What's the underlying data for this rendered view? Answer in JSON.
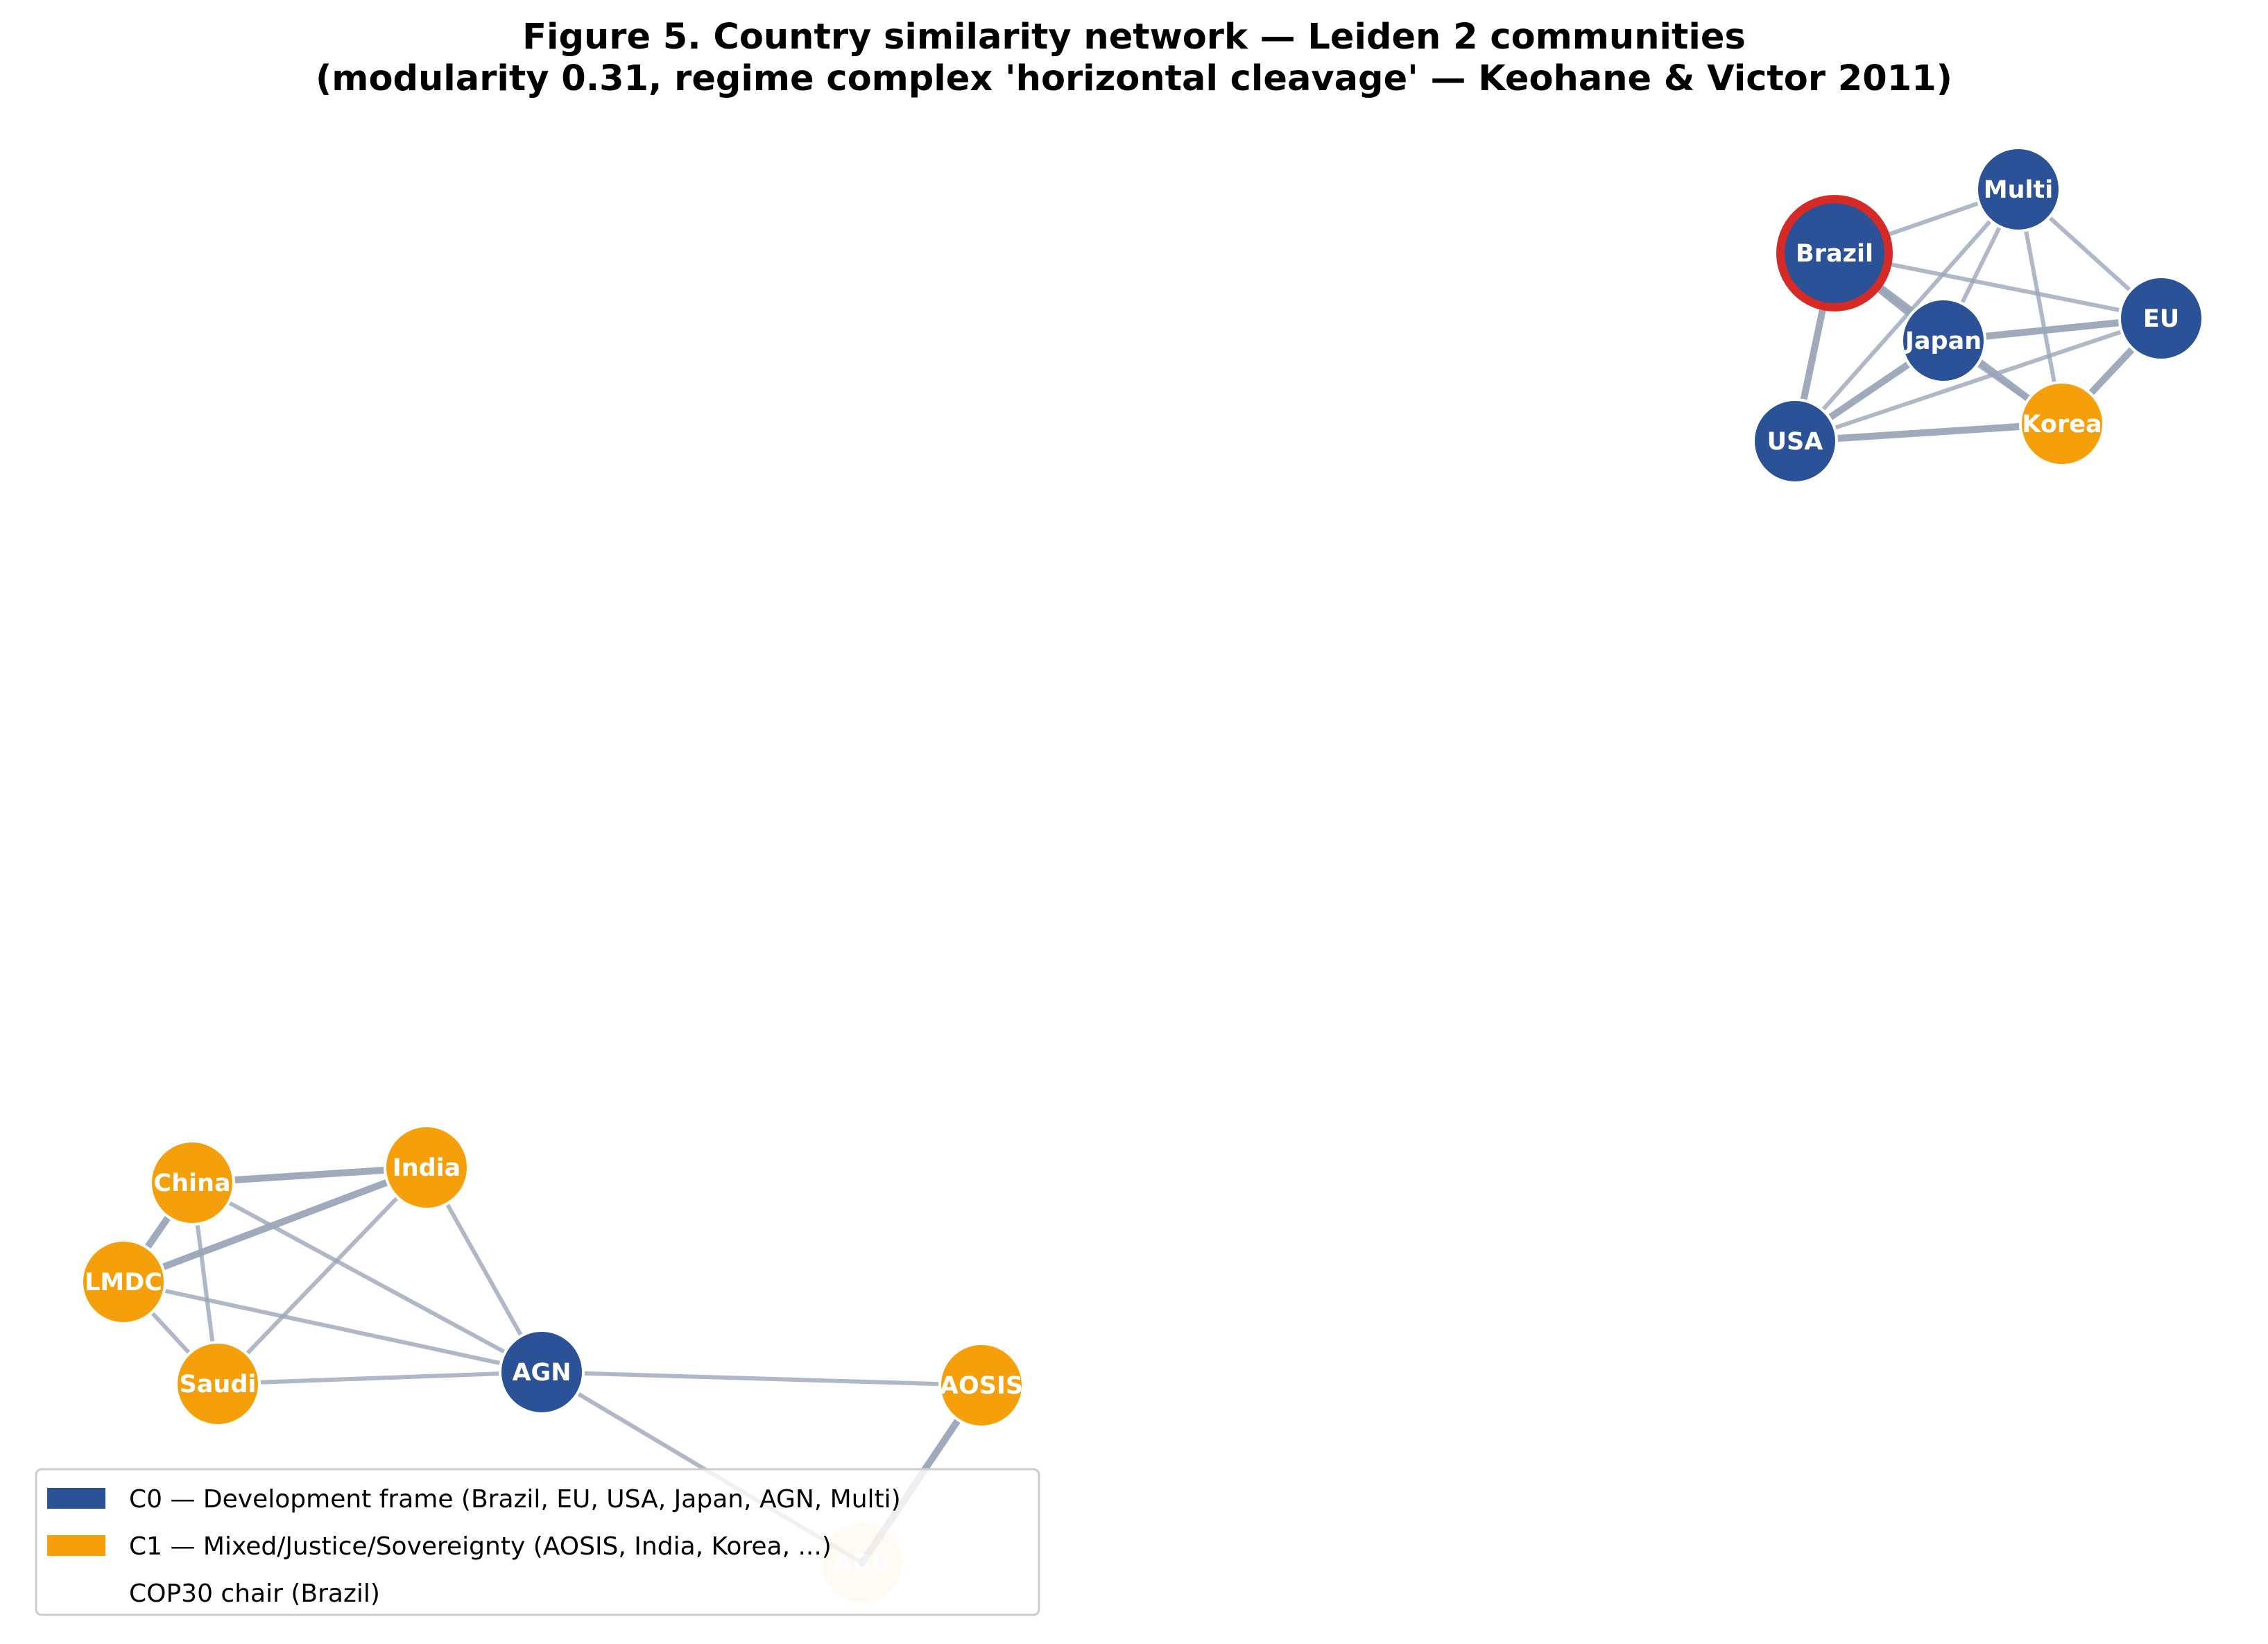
{
  "figure": {
    "title_line1": "Figure 5. Country similarity network — Leiden 2 communities",
    "title_line2": "(modularity 0.31, regime complex 'horizontal cleavage' — Keohane & Victor 2011)"
  },
  "colors": {
    "c0": "#2b5297",
    "c1": "#f59f0b",
    "edge": "#9aa6b8",
    "chair_ring": "#d62a27"
  },
  "legend": {
    "items": [
      {
        "label": "C0 — Development frame (Brazil, EU, USA, Japan, AGN, Multi)",
        "color": "#2b5297"
      },
      {
        "label": "C1 — Mixed/Justice/Sovereignty (AOSIS, India, Korea, ...)",
        "color": "#f59f0b"
      },
      {
        "label": "COP30 chair (Brazil)",
        "color": "none"
      }
    ]
  },
  "nodes": [
    {
      "id": "Multi",
      "label": "Multi",
      "community": 0
    },
    {
      "id": "Brazil",
      "label": "Brazil",
      "community": 0,
      "chair": true
    },
    {
      "id": "EU",
      "label": "EU",
      "community": 0
    },
    {
      "id": "Japan",
      "label": "Japan",
      "community": 0
    },
    {
      "id": "Korea",
      "label": "Korea",
      "community": 1
    },
    {
      "id": "USA",
      "label": "USA",
      "community": 0
    },
    {
      "id": "China",
      "label": "China",
      "community": 1
    },
    {
      "id": "India",
      "label": "India",
      "community": 1
    },
    {
      "id": "LMDC",
      "label": "LMDC",
      "community": 1
    },
    {
      "id": "Saudi",
      "label": "Saudi",
      "community": 1
    },
    {
      "id": "AGN",
      "label": "AGN",
      "community": 0
    },
    {
      "id": "AOSIS",
      "label": "AOSIS",
      "community": 1
    },
    {
      "id": "ABU",
      "label": "ABU",
      "community": 1,
      "faded": true
    }
  ],
  "edges": [
    [
      "Brazil",
      "Multi",
      1
    ],
    [
      "Brazil",
      "EU",
      1
    ],
    [
      "Brazil",
      "Japan",
      2
    ],
    [
      "Brazil",
      "Korea",
      2
    ],
    [
      "Brazil",
      "USA",
      2
    ],
    [
      "Multi",
      "EU",
      1
    ],
    [
      "Multi",
      "Japan",
      1
    ],
    [
      "Multi",
      "Korea",
      1
    ],
    [
      "Multi",
      "USA",
      1
    ],
    [
      "EU",
      "Japan",
      2
    ],
    [
      "EU",
      "Korea",
      2
    ],
    [
      "EU",
      "USA",
      1
    ],
    [
      "Japan",
      "USA",
      2
    ],
    [
      "Japan",
      "Korea",
      1
    ],
    [
      "USA",
      "Korea",
      2
    ],
    [
      "China",
      "India",
      2
    ],
    [
      "China",
      "LMDC",
      2
    ],
    [
      "China",
      "Saudi",
      1
    ],
    [
      "China",
      "AGN",
      1
    ],
    [
      "India",
      "LMDC",
      2
    ],
    [
      "India",
      "Saudi",
      1
    ],
    [
      "India",
      "AGN",
      1
    ],
    [
      "LMDC",
      "Saudi",
      1
    ],
    [
      "LMDC",
      "AGN",
      1
    ],
    [
      "Saudi",
      "AGN",
      1
    ],
    [
      "AGN",
      "AOSIS",
      1
    ],
    [
      "AGN",
      "ABU",
      1
    ],
    [
      "AOSIS",
      "ABU",
      2
    ]
  ]
}
